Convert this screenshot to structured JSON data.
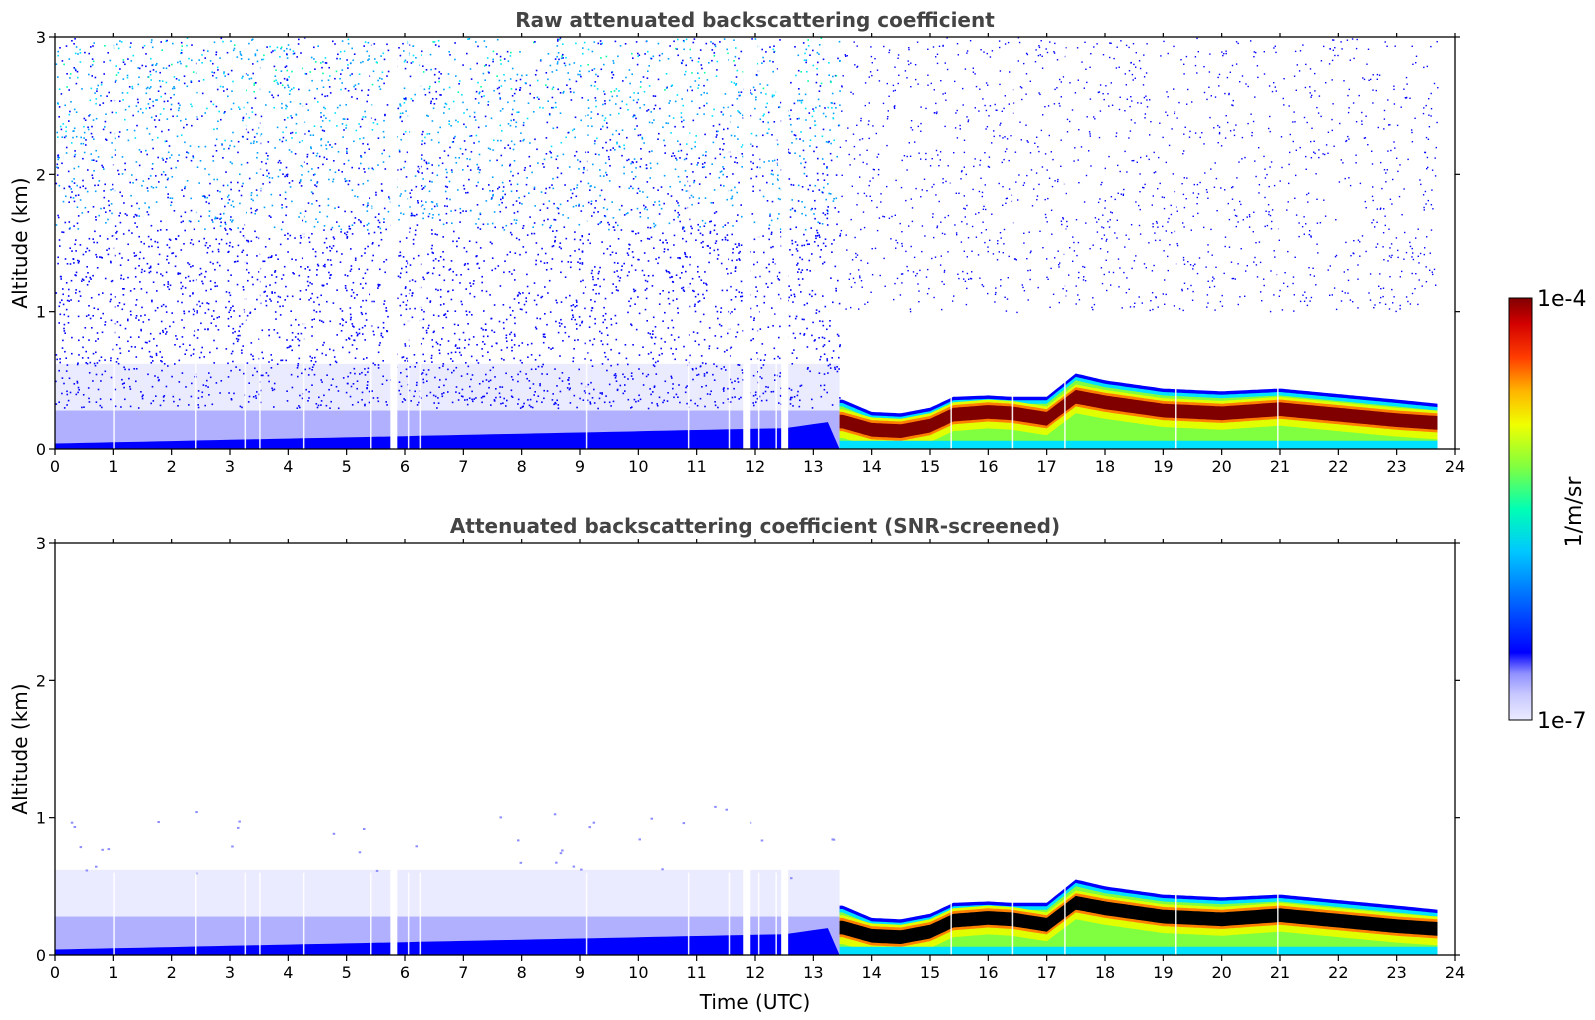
{
  "colors": {
    "axis": "#000000",
    "title_text": "#444444",
    "background": "#ffffff",
    "colormap": [
      "#ebebff",
      "#d0d0ff",
      "#b0b0ff",
      "#8c8cff",
      "#0000ff",
      "#0050ff",
      "#00a0ff",
      "#00e0ff",
      "#00ffa0",
      "#80ff40",
      "#e0ff00",
      "#ffd000",
      "#ff8000",
      "#ff2000",
      "#c80000",
      "#800000"
    ],
    "screened_core": "#000000"
  },
  "colorbar": {
    "max_label": "1e-4",
    "min_label": "1e-7",
    "unit_label": "1/m/sr",
    "scale": "log"
  },
  "chart_data": [
    {
      "type": "heatmap",
      "title": "Raw attenuated backscattering coefficient",
      "xlabel": "",
      "ylabel": "Altitude (km)",
      "xlim": [
        0,
        24
      ],
      "ylim": [
        0,
        3
      ],
      "x_tick_labels": [
        "0",
        "1",
        "2",
        "3",
        "4",
        "5",
        "6",
        "7",
        "8",
        "9",
        "10",
        "11",
        "12",
        "13",
        "14",
        "15",
        "16",
        "17",
        "18",
        "19",
        "20",
        "21",
        "22",
        "23",
        "24"
      ],
      "y_tick_labels": [
        "0",
        "1",
        "2",
        "3"
      ],
      "data_end_hour": 23.7,
      "transition_hour": 13.45,
      "data_gaps_hours": [
        5.8,
        11.85,
        12.5
      ],
      "noise_above_transition": true,
      "layer_profile": {
        "hours": [
          13.5,
          14,
          14.5,
          15,
          15.4,
          16,
          16.4,
          17,
          17.5,
          18,
          19,
          20,
          21,
          22,
          23,
          23.7
        ],
        "top_km": [
          0.36,
          0.27,
          0.26,
          0.3,
          0.38,
          0.39,
          0.38,
          0.38,
          0.55,
          0.5,
          0.44,
          0.42,
          0.44,
          0.4,
          0.36,
          0.33
        ],
        "core_km": [
          0.2,
          0.14,
          0.13,
          0.17,
          0.25,
          0.27,
          0.26,
          0.22,
          0.38,
          0.34,
          0.28,
          0.26,
          0.29,
          0.25,
          0.21,
          0.19
        ]
      }
    },
    {
      "type": "heatmap",
      "title": "Attenuated backscattering coefficient (SNR-screened)",
      "xlabel": "Time (UTC)",
      "ylabel": "Altitude (km)",
      "xlim": [
        0,
        24
      ],
      "ylim": [
        0,
        3
      ],
      "x_tick_labels": [
        "0",
        "1",
        "2",
        "3",
        "4",
        "5",
        "6",
        "7",
        "8",
        "9",
        "10",
        "11",
        "12",
        "13",
        "14",
        "15",
        "16",
        "17",
        "18",
        "19",
        "20",
        "21",
        "22",
        "23",
        "24"
      ],
      "y_tick_labels": [
        "0",
        "1",
        "2",
        "3"
      ],
      "data_end_hour": 23.7,
      "transition_hour": 13.45,
      "data_gaps_hours": [
        5.8,
        11.85,
        12.5
      ],
      "noise_above_transition": false,
      "layer_profile": {
        "hours": [
          13.5,
          14,
          14.5,
          15,
          15.4,
          16,
          16.4,
          17,
          17.5,
          18,
          19,
          20,
          21,
          22,
          23,
          23.7
        ],
        "top_km": [
          0.36,
          0.27,
          0.26,
          0.3,
          0.38,
          0.39,
          0.38,
          0.38,
          0.55,
          0.5,
          0.44,
          0.42,
          0.44,
          0.4,
          0.36,
          0.33
        ],
        "core_km": [
          0.2,
          0.14,
          0.13,
          0.17,
          0.25,
          0.27,
          0.26,
          0.22,
          0.38,
          0.34,
          0.28,
          0.26,
          0.29,
          0.25,
          0.21,
          0.19
        ]
      }
    }
  ]
}
